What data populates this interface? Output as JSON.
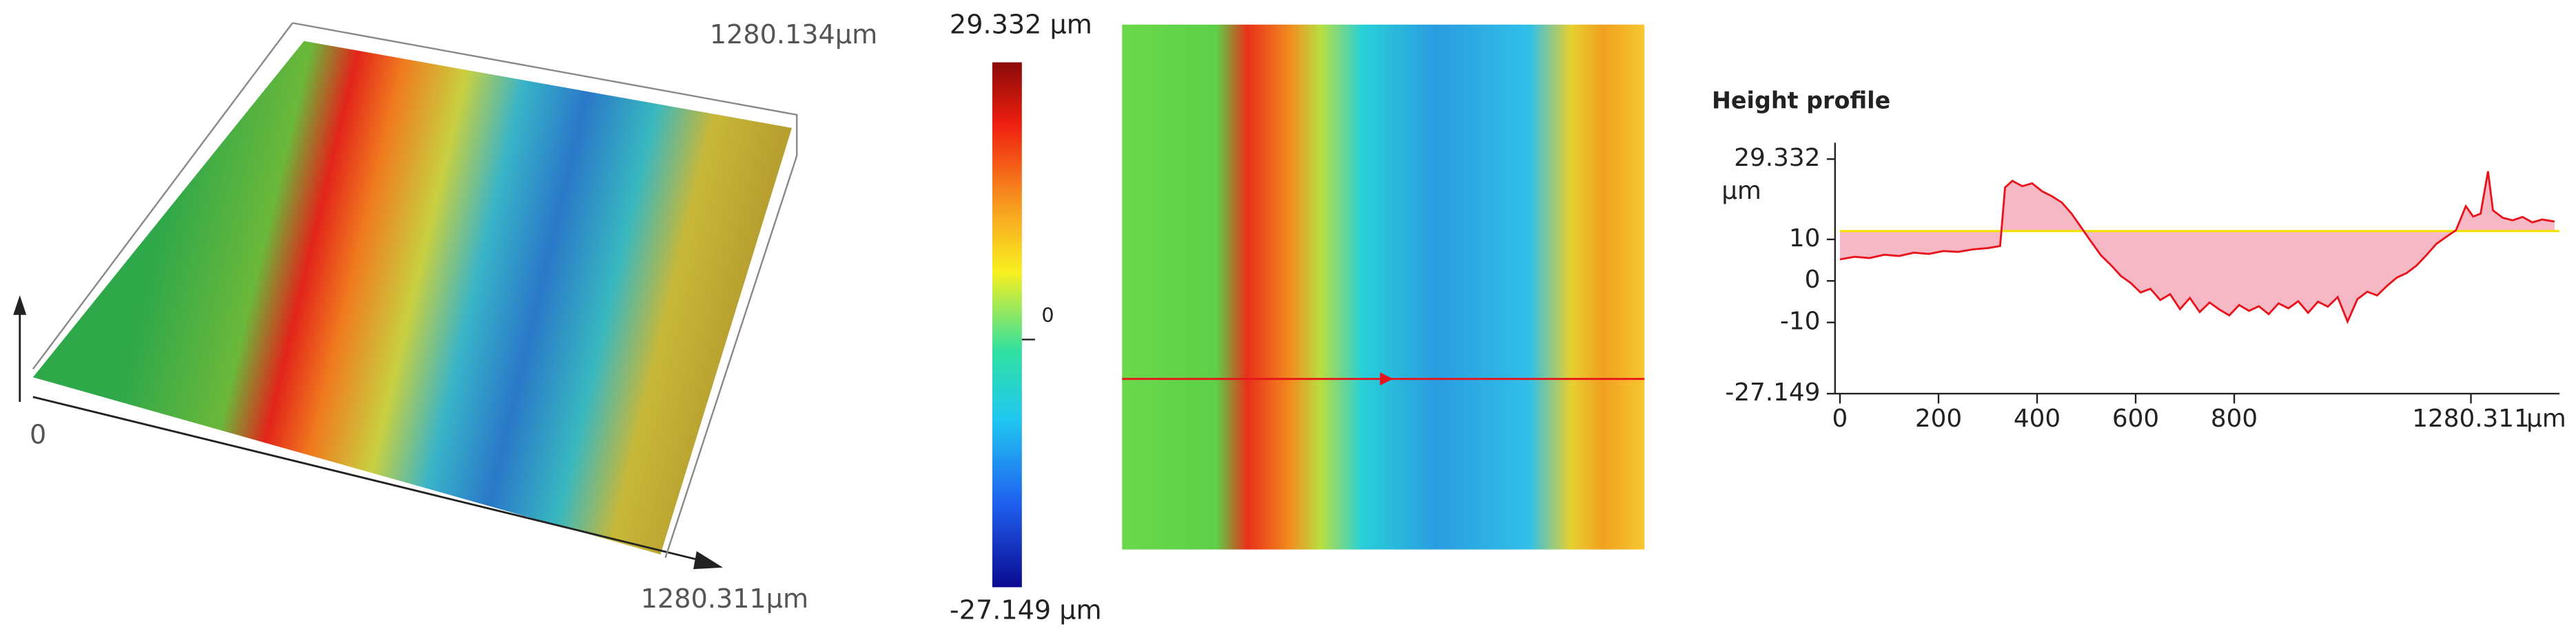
{
  "surface_3d": {
    "y_extent_label": "1280.134µm",
    "x_extent_label": "1280.311µm",
    "origin_label": "0"
  },
  "colorbar": {
    "max_label": "29.332 µm",
    "zero_label": "0",
    "min_label": "-27.149 µm"
  },
  "chart_data": {
    "type": "line",
    "title": "Height profile",
    "y_label": "µm",
    "x_label": "µm",
    "x": [
      0,
      30,
      60,
      90,
      120,
      150,
      180,
      210,
      240,
      270,
      300,
      325,
      335,
      350,
      370,
      390,
      410,
      430,
      450,
      470,
      490,
      510,
      530,
      550,
      570,
      590,
      610,
      630,
      650,
      670,
      690,
      710,
      730,
      750,
      770,
      790,
      810,
      830,
      850,
      870,
      890,
      910,
      930,
      950,
      970,
      990,
      1010,
      1030,
      1050,
      1070,
      1090,
      1110,
      1130,
      1150,
      1170,
      1190,
      1210,
      1230,
      1250,
      1270,
      1285,
      1300,
      1315,
      1325,
      1345,
      1365,
      1385,
      1405,
      1425,
      1450
    ],
    "series": [
      {
        "name": "Height profile",
        "color": "#e8141c",
        "values": [
          5.2,
          5.8,
          5.5,
          6.3,
          6.0,
          6.8,
          6.5,
          7.2,
          7.0,
          7.6,
          7.9,
          8.4,
          22.5,
          24.1,
          22.8,
          23.5,
          21.6,
          20.4,
          18.9,
          16.2,
          12.8,
          9.4,
          6.1,
          3.8,
          1.2,
          -0.5,
          -2.8,
          -1.9,
          -4.6,
          -3.2,
          -6.8,
          -4.1,
          -7.5,
          -5.2,
          -6.9,
          -8.3,
          -5.8,
          -7.2,
          -6.1,
          -8.0,
          -5.4,
          -6.6,
          -4.9,
          -7.7,
          -5.0,
          -6.2,
          -3.9,
          -9.8,
          -4.4,
          -2.6,
          -3.5,
          -1.2,
          0.8,
          1.9,
          3.7,
          6.2,
          8.9,
          10.6,
          12.2,
          18.0,
          15.5,
          16.2,
          26.4,
          17.0,
          15.2,
          14.6,
          15.4,
          14.1,
          14.8,
          14.3
        ]
      }
    ],
    "reference_line": 12,
    "reference_color": "#f2e200",
    "fill_color": "#f6b8c4",
    "xlim": [
      0,
      1460
    ],
    "ylim": [
      -27.149,
      29.332
    ],
    "xticks": [
      0,
      200,
      400,
      600,
      800,
      1280.311
    ],
    "yticks": [
      29.332,
      10,
      0,
      -10,
      -27.149
    ]
  }
}
